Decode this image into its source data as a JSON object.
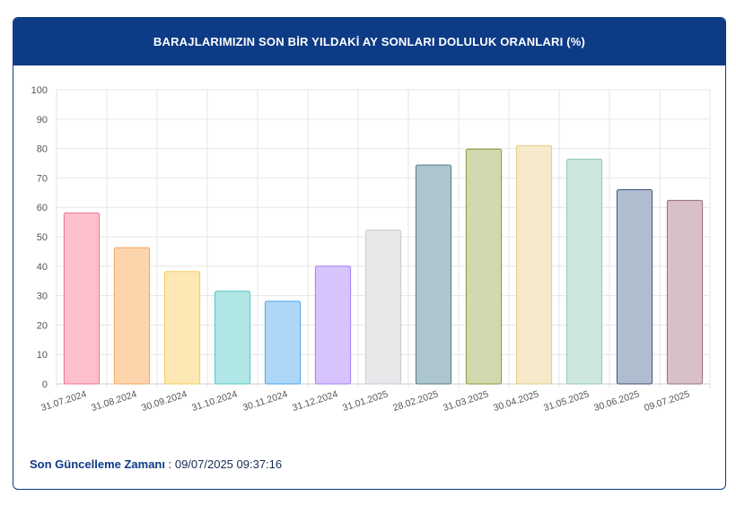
{
  "card": {
    "title": "BARAJLARIMIZIN SON BİR YILDAKİ AY SONLARI DOLULUK ORANLARI (%)"
  },
  "footer": {
    "label": "Son Güncelleme Zamanı",
    "separator": " : ",
    "value": "09/07/2025 09:37:16"
  },
  "colors": {
    "header_bg": "#0d3b86",
    "header_text": "#ffffff"
  },
  "chart_data": {
    "type": "bar",
    "title": "BARAJLARIMIZIN SON BİR YILDAKİ AY SONLARI DOLULUK ORANLARI (%)",
    "xlabel": "",
    "ylabel": "",
    "ylim": [
      0,
      100
    ],
    "yticks": [
      0,
      10,
      20,
      30,
      40,
      50,
      60,
      70,
      80,
      90,
      100
    ],
    "grid": true,
    "legend": "none",
    "categories": [
      "31.07.2024",
      "31.08.2024",
      "30.09.2024",
      "31.10.2024",
      "30.11.2024",
      "31.12.2024",
      "31.01.2025",
      "28.02.2025",
      "31.03.2025",
      "30.04.2025",
      "31.05.2025",
      "30.06.2025",
      "09.07.2025"
    ],
    "values": [
      58.1,
      46.3,
      38.2,
      31.5,
      28.1,
      40.0,
      52.3,
      74.4,
      79.8,
      81.0,
      76.4,
      66.0,
      62.4
    ],
    "bar_fills": [
      "#ffc0cd",
      "#fdd5ad",
      "#fde7b4",
      "#b0e6e6",
      "#aed7f7",
      "#d8c4fd",
      "#e7e8ea",
      "#adc6cd",
      "#d3d9af",
      "#f5e9ca",
      "#cde6df",
      "#afbdcf",
      "#d7c0c6"
    ],
    "bar_strokes": [
      "#f4708e",
      "#f6a55a",
      "#f5cd5d",
      "#58c6c6",
      "#4aa6e8",
      "#a77ef5",
      "#c8cace",
      "#4d7a86",
      "#8a9431",
      "#e6cc87",
      "#8ec9ba",
      "#3e5479",
      "#9a6c78"
    ]
  }
}
